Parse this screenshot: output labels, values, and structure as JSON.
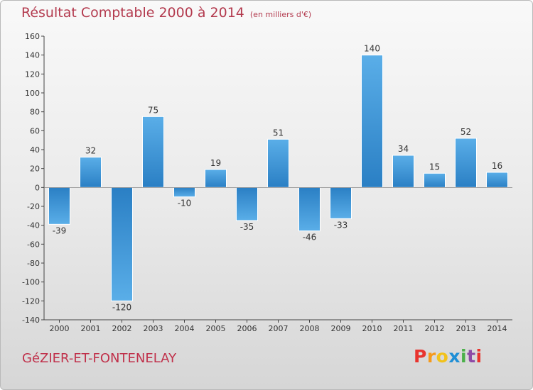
{
  "header": {
    "title": "Résultat Comptable 2000 à 2014",
    "subtitle": "(en milliers d'€)"
  },
  "footer": {
    "commune": "GéZIER-ET-FONTENELAY",
    "logo_letters": [
      "P",
      "r",
      "o",
      "x",
      "i",
      "t",
      "i"
    ],
    "logo_colors": [
      "#e8342e",
      "#f59a1b",
      "#f2c21b",
      "#1f8fd6",
      "#4bb04a",
      "#8e4aa6",
      "#e8342e"
    ]
  },
  "chart_data": {
    "type": "bar",
    "title": "Résultat Comptable 2000 à 2014",
    "subtitle": "(en milliers d'€)",
    "xlabel": "",
    "ylabel": "",
    "categories": [
      "2000",
      "2001",
      "2002",
      "2003",
      "2004",
      "2005",
      "2006",
      "2007",
      "2008",
      "2009",
      "2010",
      "2011",
      "2012",
      "2013",
      "2014"
    ],
    "values": [
      -39,
      32,
      -120,
      75,
      -10,
      19,
      -35,
      51,
      -46,
      -33,
      140,
      34,
      15,
      52,
      16
    ],
    "value_labels": [
      "-39",
      "32",
      "-120",
      "75",
      "-10",
      "19",
      "-35",
      "51",
      "-46",
      "-33",
      "140",
      "34",
      "15",
      "52",
      "16"
    ],
    "ylim": [
      -140,
      160
    ],
    "yticks": [
      160,
      140,
      120,
      100,
      80,
      60,
      40,
      20,
      0,
      -20,
      -40,
      -60,
      -80,
      -100,
      -120,
      -140
    ],
    "ytick_labels": [
      "160",
      "140",
      "120",
      "100",
      "80",
      "60",
      "40",
      "20",
      "0",
      "-20",
      "-40",
      "-60",
      "-80",
      "-100",
      "-120",
      "-140"
    ],
    "grid": false,
    "bar_color_light": "#5aaee8",
    "bar_color_dark": "#2a7fc4"
  }
}
